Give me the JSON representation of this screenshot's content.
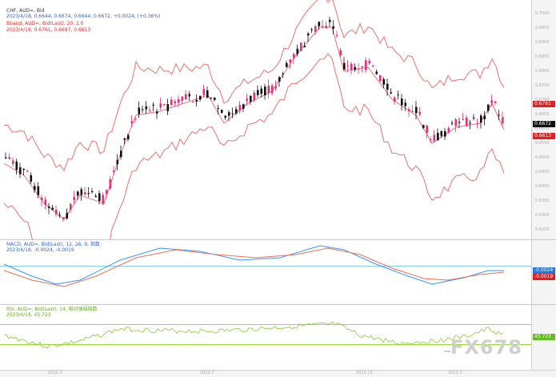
{
  "main": {
    "title": "CHF, AUD=, Bid",
    "ohlc": "2023/4/18, 0.6644, 0.6674, 0.6644, 0.6672, +0.0024, (+0.36%)",
    "boll_name": "Bband, AUD=, Bid(Last), 20, 2.0",
    "boll_vals": "2023/4/18, 0.6761, 0.6687, 0.6613",
    "price_tag": "0.6672",
    "upper_tag": "0.6761",
    "lower_tag": "0.6613",
    "y_ticks": [
      "0.7000",
      "0.6950",
      "0.6900",
      "0.6850",
      "0.6800",
      "0.6750",
      "0.6700",
      "0.6650",
      "0.6600",
      "0.6550",
      "0.6500",
      "0.6450",
      "0.6400",
      "0.6350",
      "0.6300",
      "0.6250"
    ]
  },
  "macd": {
    "name": "MACD, AUD=, Bid(Last), 12, 26, 9, 指数",
    "vals": "2023/4/18, -0.0024, -0.0019",
    "tag1": "-0.0024",
    "tag2": "-0.0019"
  },
  "rsi": {
    "name": "RSI, AUD=, Bid(Last), 14, 相对强弱指数",
    "vals": "2023/4/18, 45.723",
    "tag": "45.723"
  },
  "x_labels": [
    "2022-3",
    "2022-7",
    "2022-11",
    "2023-3"
  ],
  "watermark": "FX678",
  "colors": {
    "up": "#e0307a",
    "down": "#111111",
    "band": "#f07070",
    "macd_line": "#3399ff",
    "signal_line": "#f07050",
    "rsi_line": "#88cc33",
    "rsi_level": "#99dd33",
    "tag_red": "#e02020",
    "tag_black": "#111111",
    "tag_blue": "#2277dd"
  }
}
